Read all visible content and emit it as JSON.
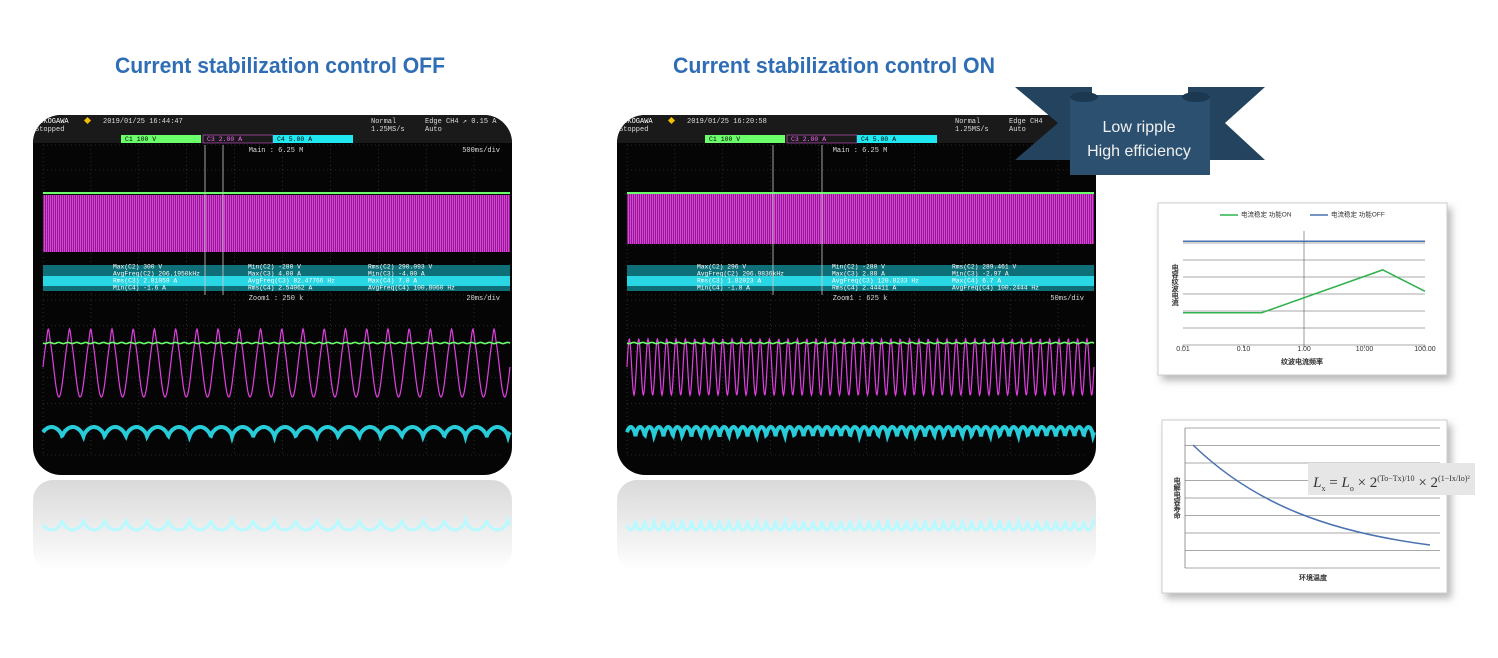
{
  "titles": [
    "Current stabilization control OFF",
    "Current stabilization control ON"
  ],
  "ribbon": [
    "Low ripple",
    "High efficiency"
  ],
  "scopes": [
    {
      "brand": "YOKOGAWA",
      "timestamp": "2019/01/25 16:44:47",
      "mode": "Normal",
      "trigger": "Edge CH4 ↗ 0.15 A",
      "state": "Stopped",
      "rate": "1.25MS/s",
      "trig_mode": "Auto",
      "channels": [
        "C1 100 V",
        "C3 2.00 A",
        "C4 5.00 A"
      ],
      "main": "Main : 6.25 M",
      "main_div": "500ms/div",
      "measurements": [
        "Max(C2)  300 V",
        "Min(C2)  -280 V",
        "Rms(C2)  290.093 V",
        "AvgFreq(C2)  206.1950kHz",
        "Max(C3)  4.00 A",
        "Min(C3)  -4.00 A",
        "Rms(C3)  2.81059 A",
        "AvgFreq(C3)  82.47766 Hz",
        "Max(C4)  7.0 A",
        "Min(C4)  -1.6 A",
        "Rms(C4)  2.54062 A",
        "AvgFreq(C4)  100.8060 Hz"
      ],
      "zoom": "Zoom1 : 250 k",
      "zoom_div": "20ms/div"
    },
    {
      "brand": "YOKOGAWA",
      "timestamp": "2019/01/25 16:20:58",
      "mode": "Normal",
      "trigger": "Edge CH4",
      "state": "Stopped",
      "rate": "1.25MS/s",
      "trig_mode": "Auto",
      "channels": [
        "C1 100 V",
        "C3 2.00 A",
        "C4 5.00 A"
      ],
      "main": "Main : 6.25 M",
      "measurements": [
        "Max(C2)  296 V",
        "Min(C2)  -280 V",
        "Rms(C2)  289.461 V",
        "AvgFreq(C2)  206.9836kHz",
        "Max(C3)  2.88 A",
        "Min(C3)  -2.97 A",
        "Rms(C3)  1.82023 A",
        "AvgFreq(C3)  120.8233 Hz",
        "Max(C4)  6.7 A",
        "Min(C4)  -1.8 A",
        "Rms(C4)  2.44411 A",
        "AvgFreq(C4)  100.2444 Hz"
      ],
      "zoom": "Zoom1 : 625 k",
      "zoom_div": "50ms/div"
    }
  ],
  "chart_data": {
    "type": "line",
    "x_label": "纹波电流频率",
    "y_label": "电容纹波电流",
    "log_x": true,
    "x": [
      0.01,
      0.2,
      20,
      100
    ],
    "series": [
      {
        "name": "电流稳定 功能ON",
        "color": "#2fb34f",
        "values": [
          1,
          1,
          4,
          2.5
        ]
      },
      {
        "name": "电流稳定 功能OFF",
        "color": "#4a72b0",
        "values": [
          6,
          6,
          6,
          6
        ]
      }
    ],
    "xlim": [
      0.01,
      100
    ],
    "ylim": [
      0,
      7
    ],
    "xticks": [
      0.01,
      {
        "value": 0.1,
        "label": "0.10"
      },
      {
        "value": 1,
        "label": "1.00"
      },
      {
        "value": 10,
        "label": "10.00"
      },
      {
        "value": 100,
        "label": "100.00"
      }
    ]
  },
  "life_chart": {
    "x_label": "环境温度",
    "y_label": "电解电容寿命",
    "formula": {
      "lhs": "L",
      "lhs_sub": "x",
      "eq": " = ",
      "base": "L",
      "base_sub": "o",
      "times1": " × 2",
      "exp1": "(To−Tx)/10",
      "times2": " × 2",
      "exp2": "(1−Ix/Io)²"
    }
  }
}
